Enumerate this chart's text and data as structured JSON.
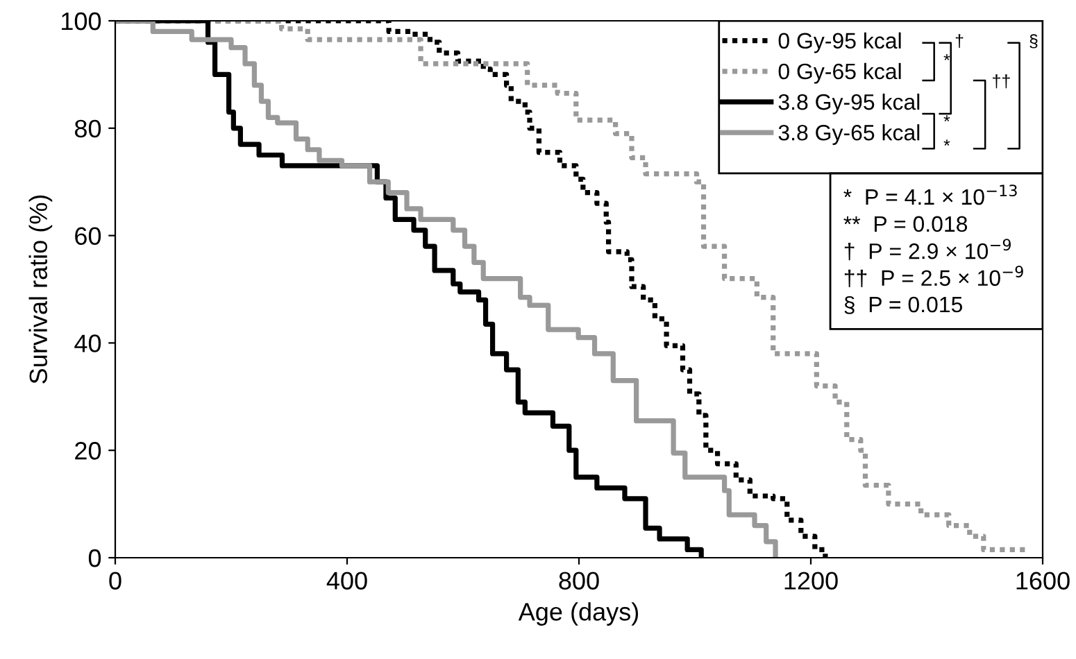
{
  "chart_data": {
    "type": "step",
    "xlabel": "Age (days)",
    "ylabel": "Survival ratio (%)",
    "xlim": [
      0,
      1600
    ],
    "xticks": [
      0,
      400,
      800,
      1200,
      1600
    ],
    "ylim": [
      0,
      100
    ],
    "yticks": [
      0,
      20,
      40,
      60,
      80,
      100
    ],
    "grid": false,
    "legend": "top right",
    "series": [
      {
        "name": "0 Gy-95 kcal",
        "color": "#000000",
        "line_style": "dotted",
        "x": [
          0,
          472,
          511,
          543,
          559,
          591,
          635,
          647,
          675,
          683,
          707,
          715,
          731,
          767,
          795,
          807,
          831,
          847,
          851,
          883,
          891,
          911,
          931,
          951,
          979,
          991,
          1007,
          1019,
          1039,
          1071,
          1095,
          1135,
          1159,
          1183,
          1207,
          1225
        ],
        "values": [
          100,
          98,
          97.5,
          96,
          94,
          92.5,
          91,
          90,
          88,
          85,
          83,
          80,
          75.5,
          73,
          70.5,
          68,
          66,
          62.5,
          57,
          55.5,
          50.5,
          48,
          44.5,
          39.5,
          35,
          30.5,
          26.5,
          20,
          17.5,
          14.5,
          11.5,
          11,
          7,
          4,
          1.5,
          0
        ]
      },
      {
        "name": "0 Gy-65 kcal",
        "color": "#999999",
        "line_style": "dotted",
        "x": [
          0,
          287,
          332,
          527,
          711,
          763,
          795,
          863,
          891,
          915,
          1003,
          1015,
          1051,
          1107,
          1135,
          1210,
          1242,
          1262,
          1286,
          1294,
          1334,
          1390,
          1438,
          1474,
          1498,
          1577
        ],
        "values": [
          100,
          98.5,
          96.5,
          92,
          88,
          86.5,
          81.5,
          79,
          74.5,
          71.5,
          70,
          58,
          52,
          48.5,
          38,
          32,
          29,
          22,
          20,
          13.5,
          10,
          8,
          6,
          4,
          1.5,
          1.5
        ]
      },
      {
        "name": "3.8 Gy-95 kcal",
        "color": "#000000",
        "line_style": "solid",
        "x": [
          0,
          160,
          172,
          196,
          204,
          216,
          248,
          288,
          444,
          452,
          467,
          483,
          515,
          535,
          551,
          583,
          595,
          627,
          639,
          651,
          675,
          695,
          707,
          755,
          783,
          795,
          831,
          879,
          915,
          939,
          987,
          1011
        ],
        "values": [
          100,
          96,
          90,
          83,
          80,
          77,
          75,
          73,
          73,
          70,
          67,
          63,
          61,
          58,
          53.5,
          51,
          49.5,
          48,
          43.5,
          38,
          35,
          29,
          27,
          24.5,
          20,
          15,
          13,
          11,
          5.5,
          3.5,
          1.5,
          0
        ]
      },
      {
        "name": "3.8 Gy-65 kcal",
        "color": "#999999",
        "line_style": "solid",
        "x": [
          0,
          65,
          132,
          200,
          224,
          240,
          252,
          264,
          280,
          312,
          332,
          352,
          391,
          439,
          471,
          503,
          527,
          583,
          603,
          619,
          635,
          699,
          715,
          747,
          799,
          827,
          859,
          899,
          963,
          983,
          1051,
          1059,
          1103,
          1123,
          1139
        ],
        "values": [
          100,
          98,
          96.5,
          95,
          92,
          88,
          85,
          82,
          81,
          78,
          76,
          74,
          73,
          70,
          68,
          65,
          63,
          61,
          58,
          55,
          52,
          48.5,
          47,
          42.5,
          41,
          38,
          33,
          25.5,
          19.5,
          15,
          12.5,
          8,
          6,
          3,
          0
        ]
      }
    ],
    "annotations": [
      "*",
      "†",
      "*",
      "*",
      "††",
      "§",
      "*  P = 4.1 × 10$^{−13}$",
      "**  P = 0.018",
      "†  P = 2.9 × 10$^{−9}$",
      "††  P = 2.5 × 10$^{−9}$",
      "§  P = 0.015"
    ]
  }
}
